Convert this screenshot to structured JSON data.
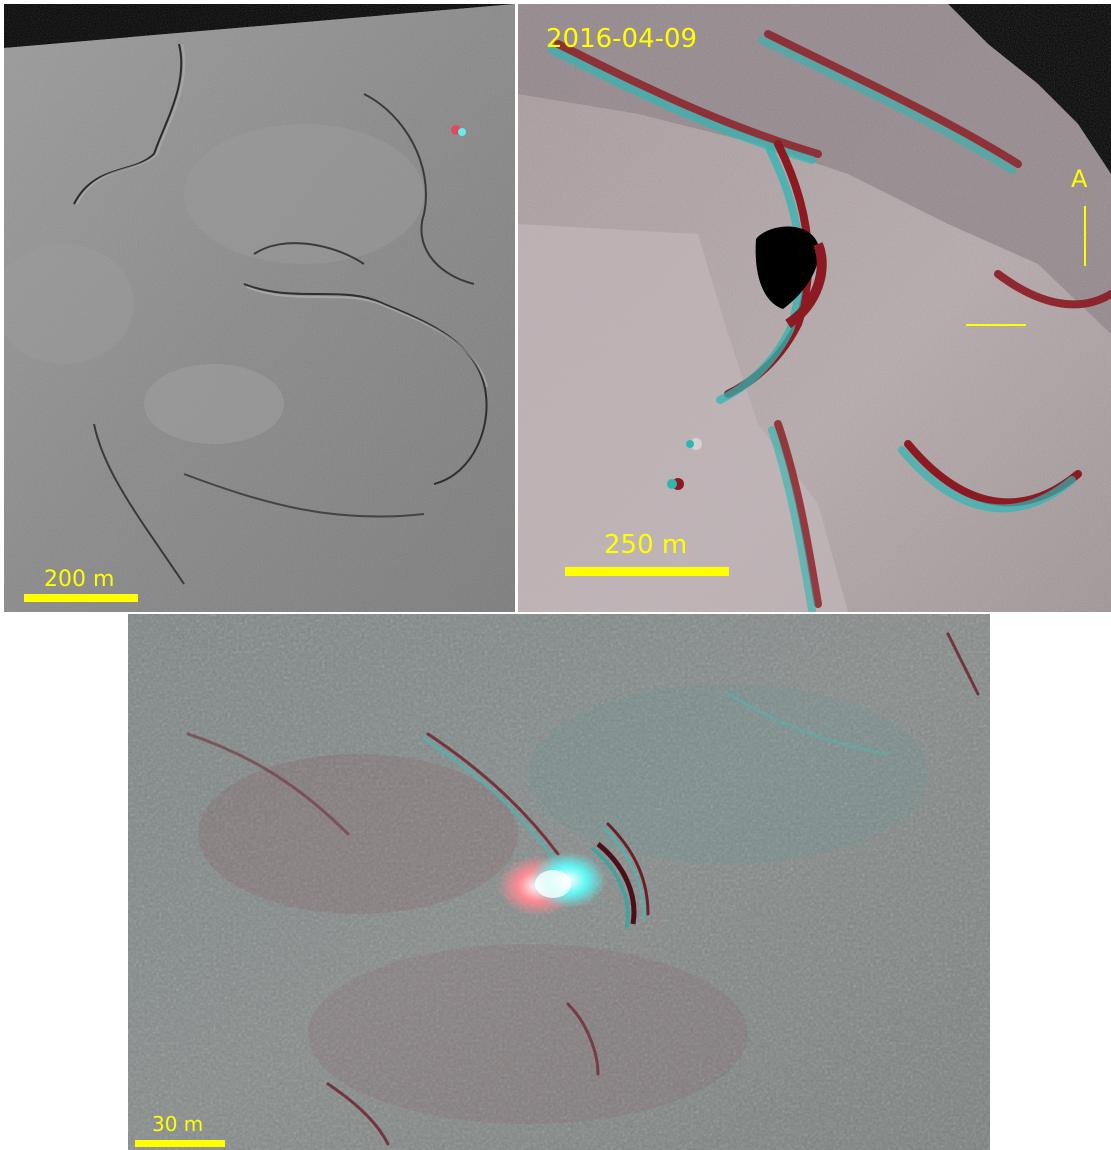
{
  "panels": [
    {
      "scale_label": "200 m"
    },
    {
      "date_label": "2016-04-09",
      "scale_label": "250 m",
      "marker_label": "A"
    },
    {
      "scale_label": "30 m"
    }
  ],
  "colors": {
    "annotation": "#ffff00",
    "anaglyph_red": "#8b1a22",
    "anaglyph_cyan": "#2fb6b3",
    "panel_a_base": "#8c8c8c",
    "panel_b_base": "#b3a6a8",
    "panel_c_base": "#7f8786"
  }
}
